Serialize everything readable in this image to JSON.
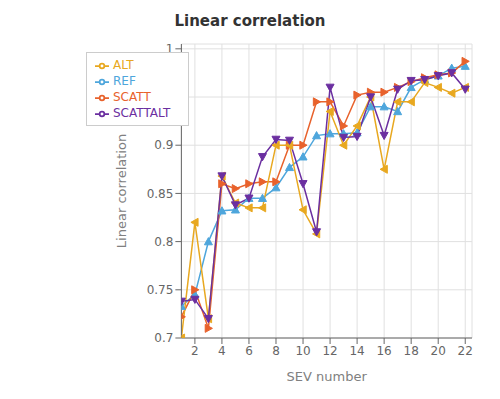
{
  "chart_data": {
    "type": "line",
    "title": "Linear correlation",
    "x_label": "SEV number",
    "y_label": "Linear correlation",
    "x": [
      1,
      2,
      3,
      4,
      5,
      6,
      7,
      8,
      9,
      10,
      11,
      12,
      13,
      14,
      15,
      16,
      17,
      18,
      19,
      20,
      21,
      22
    ],
    "series": [
      {
        "name": "REF",
        "color": "#4ea6dc",
        "marker": "triangle-up",
        "values": [
          0.733,
          0.745,
          0.8,
          0.832,
          0.833,
          0.845,
          0.845,
          0.856,
          0.877,
          0.888,
          0.91,
          0.912,
          0.912,
          0.913,
          0.94,
          0.94,
          0.935,
          0.96,
          0.968,
          0.972,
          0.98,
          0.982
        ]
      },
      {
        "name": "SCATT",
        "color": "#e8622c",
        "marker": "triangle-right",
        "values": [
          0.722,
          0.75,
          0.71,
          0.86,
          0.855,
          0.86,
          0.862,
          0.862,
          0.9,
          0.9,
          0.945,
          0.945,
          0.92,
          0.952,
          0.955,
          0.955,
          0.96,
          0.966,
          0.97,
          0.973,
          0.975,
          0.987
        ]
      },
      {
        "name": "ALT",
        "color": "#e8a820",
        "marker": "triangle-left",
        "values": [
          0.7,
          0.82,
          0.72,
          0.868,
          0.84,
          0.835,
          0.835,
          0.9,
          0.9,
          0.833,
          0.808,
          0.935,
          0.9,
          0.92,
          0.95,
          0.875,
          0.945,
          0.945,
          0.965,
          0.96,
          0.954,
          0.96
        ]
      },
      {
        "name": "SCATTALT",
        "color": "#6b2fa0",
        "marker": "triangle-down",
        "values": [
          0.738,
          0.74,
          0.72,
          0.868,
          0.838,
          0.845,
          0.888,
          0.906,
          0.905,
          0.86,
          0.81,
          0.96,
          0.908,
          0.909,
          0.95,
          0.91,
          0.958,
          0.967,
          0.968,
          0.972,
          0.975,
          0.958
        ]
      }
    ],
    "xlim": [
      1,
      22.5
    ],
    "ylim": [
      0.7,
      1.005
    ],
    "xticks": [
      2,
      4,
      6,
      8,
      10,
      12,
      14,
      16,
      18,
      20,
      22
    ],
    "yticks": [
      0.7,
      0.75,
      0.8,
      0.85,
      0.9,
      0.95,
      1
    ],
    "grid": true,
    "legend": "upper left"
  }
}
